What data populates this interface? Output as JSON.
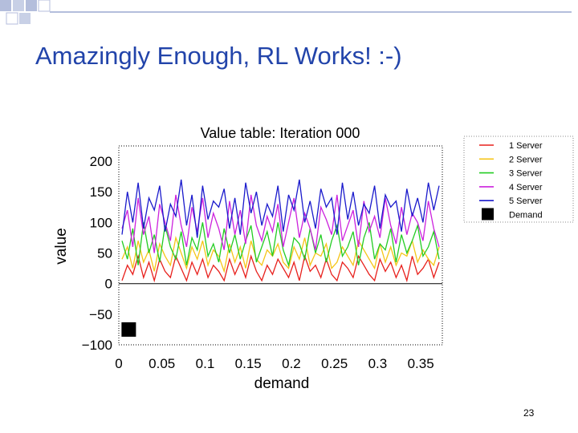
{
  "slide": {
    "title": "Amazingly Enough, RL Works! :-)",
    "page_number": "23",
    "accent_colors": [
      "#2244aa",
      "#b4bedc"
    ]
  },
  "chart_data": {
    "type": "line",
    "title": "Value table: Iteration 000",
    "xlabel": "demand",
    "ylabel": "value",
    "xlim": [
      0,
      0.375
    ],
    "ylim": [
      -100,
      225
    ],
    "x_ticks": [
      "0",
      "0.05",
      "0.1",
      "0.15",
      "0.2",
      "0.25",
      "0.3",
      "0.35"
    ],
    "y_ticks": [
      "200",
      "150",
      "100",
      "50",
      "0",
      "−50",
      "−100"
    ],
    "x_tick_values": [
      0,
      0.05,
      0.1,
      0.15,
      0.2,
      0.25,
      0.3,
      0.35
    ],
    "y_tick_values": [
      200,
      150,
      100,
      50,
      0,
      -50,
      -100
    ],
    "zero_line": true,
    "legend_position": "right",
    "demand_marker": {
      "x": 0.005,
      "y": -75
    },
    "series": [
      {
        "name": "1 Server",
        "color": "#e8201c",
        "values": [
          5,
          30,
          15,
          45,
          10,
          35,
          5,
          40,
          20,
          10,
          45,
          25,
          5,
          35,
          15,
          40,
          10,
          30,
          20,
          5,
          40,
          15,
          35,
          10,
          45,
          20,
          5,
          30,
          15,
          40,
          25,
          10,
          35,
          5,
          45,
          20,
          30,
          10,
          40,
          15,
          5,
          35,
          25,
          10,
          45,
          30,
          15,
          5,
          40,
          20,
          35,
          10,
          30,
          5,
          45,
          15,
          25,
          40,
          10,
          35
        ]
      },
      {
        "name": "2 Server",
        "color": "#f5c518",
        "values": [
          40,
          60,
          25,
          70,
          35,
          55,
          20,
          65,
          45,
          30,
          75,
          50,
          25,
          60,
          40,
          70,
          30,
          55,
          45,
          20,
          65,
          35,
          60,
          25,
          70,
          40,
          30,
          55,
          45,
          65,
          35,
          25,
          60,
          40,
          75,
          30,
          50,
          45,
          65,
          25,
          35,
          60,
          45,
          30,
          70,
          55,
          40,
          25,
          65,
          35,
          60,
          30,
          50,
          45,
          70,
          35,
          55,
          40,
          30,
          60
        ]
      },
      {
        "name": "3 Server",
        "color": "#22cc22",
        "values": [
          70,
          40,
          90,
          30,
          100,
          50,
          80,
          35,
          95,
          60,
          40,
          85,
          30,
          75,
          55,
          100,
          45,
          65,
          35,
          90,
          50,
          80,
          40,
          70,
          95,
          35,
          60,
          85,
          45,
          100,
          55,
          30,
          75,
          65,
          40,
          90,
          50,
          80,
          35,
          70,
          95,
          45,
          60,
          85,
          30,
          75,
          100,
          40,
          65,
          55,
          90,
          35,
          80,
          50,
          70,
          95,
          45,
          60,
          85,
          40
        ]
      },
      {
        "name": "4 Server",
        "color": "#cc22dd",
        "values": [
          90,
          120,
          60,
          140,
          80,
          110,
          50,
          130,
          100,
          70,
          145,
          95,
          60,
          125,
          85,
          140,
          75,
          115,
          90,
          55,
          135,
          80,
          120,
          65,
          145,
          95,
          70,
          110,
          85,
          130,
          60,
          100,
          140,
          75,
          115,
          90,
          55,
          125,
          105,
          80,
          145,
          70,
          95,
          120,
          60,
          135,
          85,
          110,
          75,
          140,
          95,
          65,
          125,
          80,
          115,
          100,
          70,
          135,
          90,
          60
        ]
      },
      {
        "name": "5 Server",
        "color": "#1a1acc",
        "values": [
          80,
          150,
          100,
          165,
          90,
          140,
          120,
          160,
          85,
          130,
          110,
          170,
          95,
          145,
          75,
          160,
          105,
          135,
          125,
          155,
          90,
          140,
          80,
          165,
          115,
          150,
          95,
          130,
          110,
          160,
          85,
          145,
          120,
          170,
          100,
          135,
          90,
          155,
          125,
          140,
          80,
          165,
          105,
          150,
          95,
          130,
          115,
          160,
          90,
          145,
          125,
          135,
          85,
          155,
          110,
          140,
          100,
          165,
          120,
          160
        ]
      },
      {
        "name": "Demand",
        "color": "#000000",
        "values": []
      }
    ]
  }
}
